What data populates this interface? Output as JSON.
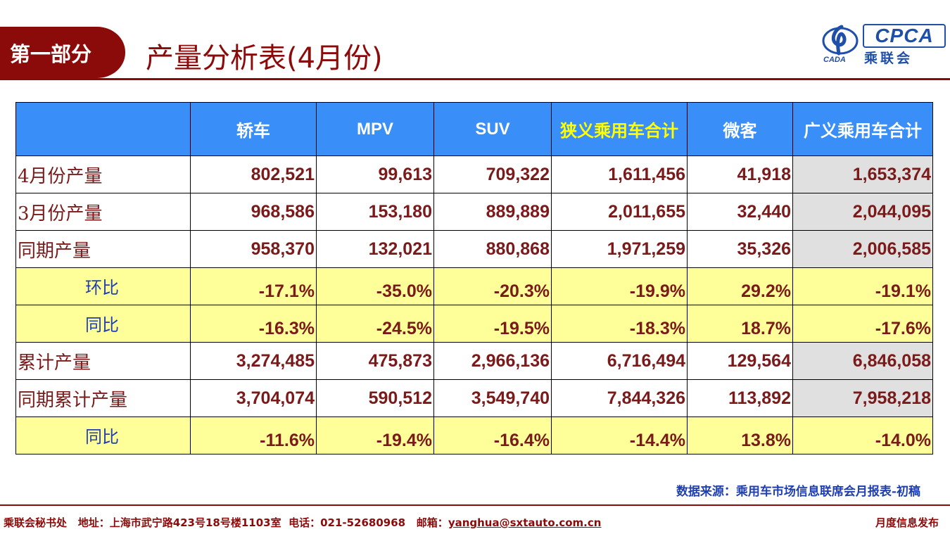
{
  "header": {
    "section_label": "第一部分",
    "title": "产量分析表(4月份)",
    "logo": {
      "mark_text": "CADA",
      "abbr": "CPCA",
      "cn_name": "乘联会"
    }
  },
  "table": {
    "columns": [
      "轿车",
      "MPV",
      "SUV",
      "狭义乘用车合计",
      "微客",
      "广义乘用车合计"
    ],
    "rows": [
      {
        "label": "4月份产量",
        "type": "value",
        "values": [
          "802,521",
          "99,613",
          "709,322",
          "1,611,456",
          "41,918",
          "1,653,374"
        ]
      },
      {
        "label": "3月份产量",
        "type": "value",
        "values": [
          "968,586",
          "153,180",
          "889,889",
          "2,011,655",
          "32,440",
          "2,044,095"
        ]
      },
      {
        "label": "同期产量",
        "type": "value",
        "values": [
          "958,370",
          "132,021",
          "880,868",
          "1,971,259",
          "35,326",
          "2,006,585"
        ]
      },
      {
        "label": "环比",
        "type": "ratio",
        "values": [
          "-17.1%",
          "-35.0%",
          "-20.3%",
          "-19.9%",
          "29.2%",
          "-19.1%"
        ]
      },
      {
        "label": "同比",
        "type": "ratio",
        "values": [
          "-16.3%",
          "-24.5%",
          "-19.5%",
          "-18.3%",
          "18.7%",
          "-17.6%"
        ]
      },
      {
        "label": "累计产量",
        "type": "value",
        "values": [
          "3,274,485",
          "475,873",
          "2,966,136",
          "6,716,494",
          "129,564",
          "6,846,058"
        ]
      },
      {
        "label": "同期累计产量",
        "type": "value",
        "values": [
          "3,704,074",
          "590,512",
          "3,549,740",
          "7,844,326",
          "113,892",
          "7,958,218"
        ]
      },
      {
        "label": "同比",
        "type": "ratio",
        "values": [
          "-11.6%",
          "-19.4%",
          "-16.4%",
          "-14.4%",
          "13.8%",
          "-14.0%"
        ]
      }
    ]
  },
  "source_note": "数据来源：乘用车市场信息联席会月报表-初稿",
  "footer": {
    "org": "乘联会秘书处",
    "address": "地址：上海市武宁路423号18号楼1103室",
    "phone": "电话：021-52680968",
    "email_label": "邮箱：",
    "email": "yanghua@sxtauto.com.cn",
    "right_text": "月度信息发布"
  },
  "colors": {
    "brand_red": "#8b0a0a",
    "header_blue": "#3a8ef7",
    "highlight_yellow_text": "#ffff00",
    "ratio_row_bg": "#ffff99",
    "total_col_bg": "#e0e0e0",
    "logo_blue": "#1f4fa8"
  }
}
